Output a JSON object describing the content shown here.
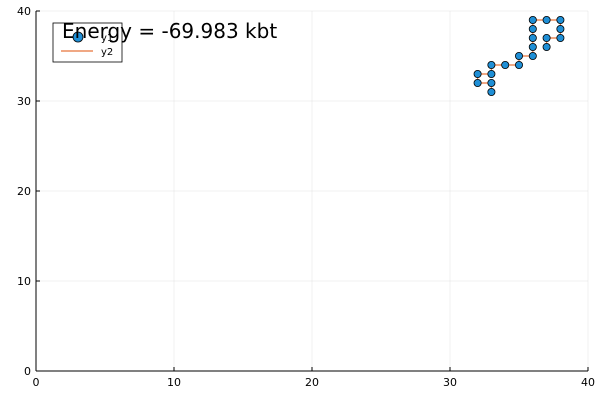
{
  "chart_data": {
    "type": "scatter",
    "title": "",
    "annotation": "Energy = -69.983 kbt",
    "xlabel": "",
    "ylabel": "",
    "xlim": [
      0,
      40
    ],
    "ylim": [
      0,
      40
    ],
    "x_ticks": [
      0,
      10,
      20,
      30,
      40
    ],
    "y_ticks": [
      0,
      10,
      20,
      30,
      40
    ],
    "grid": true,
    "legend_position": "top-left",
    "series": [
      {
        "name": "y1",
        "kind": "scatter",
        "color": "#1f8fd6",
        "points": [
          [
            33,
            31
          ],
          [
            33,
            32
          ],
          [
            32,
            32
          ],
          [
            32,
            33
          ],
          [
            33,
            33
          ],
          [
            33,
            34
          ],
          [
            34,
            34
          ],
          [
            35,
            34
          ],
          [
            35,
            35
          ],
          [
            36,
            35
          ],
          [
            36,
            36
          ],
          [
            36,
            37
          ],
          [
            36,
            38
          ],
          [
            36,
            39
          ],
          [
            37,
            39
          ],
          [
            38,
            39
          ],
          [
            38,
            38
          ],
          [
            38,
            37
          ],
          [
            37,
            37
          ],
          [
            37,
            36
          ]
        ]
      },
      {
        "name": "y2",
        "kind": "line",
        "color": "#e8753a",
        "points": [
          [
            33,
            31
          ],
          [
            33,
            32
          ],
          [
            32,
            32
          ],
          [
            32,
            33
          ],
          [
            33,
            33
          ],
          [
            33,
            34
          ],
          [
            34,
            34
          ],
          [
            35,
            34
          ],
          [
            35,
            35
          ],
          [
            36,
            35
          ],
          [
            36,
            36
          ],
          [
            36,
            37
          ],
          [
            36,
            38
          ],
          [
            36,
            39
          ],
          [
            37,
            39
          ],
          [
            38,
            39
          ],
          [
            38,
            38
          ],
          [
            38,
            37
          ],
          [
            37,
            37
          ],
          [
            37,
            36
          ]
        ]
      }
    ]
  }
}
